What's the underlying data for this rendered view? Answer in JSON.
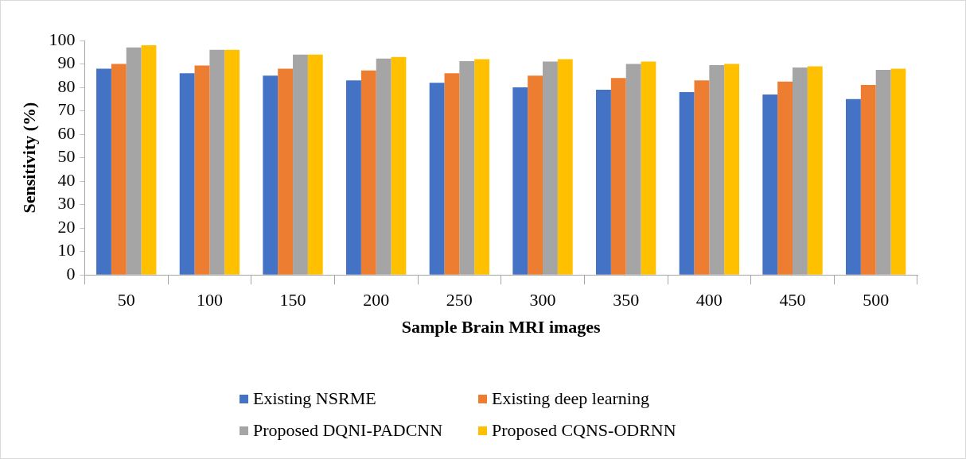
{
  "chart_data": {
    "type": "bar",
    "xlabel": "Sample Brain MRI images",
    "ylabel": "Sensitivity (%)",
    "categories": [
      "50",
      "100",
      "150",
      "200",
      "250",
      "300",
      "350",
      "400",
      "450",
      "500"
    ],
    "series": [
      {
        "name": "Existing NSRME",
        "color": "#4472c4",
        "values": [
          88,
          86,
          85,
          83,
          82,
          80,
          79,
          78,
          77,
          75
        ]
      },
      {
        "name": "Existing deep learning",
        "color": "#ed7d31",
        "values": [
          90,
          89.3,
          88,
          87.2,
          86,
          85,
          84,
          83,
          82.5,
          81
        ]
      },
      {
        "name": "Proposed DQNI-PADCNN",
        "color": "#a5a5a5",
        "values": [
          97,
          96,
          94,
          92.3,
          91.2,
          91,
          90,
          89.5,
          88.5,
          87.5
        ]
      },
      {
        "name": "Proposed CQNS-ODRNN",
        "color": "#ffc000",
        "values": [
          98,
          96,
          94,
          93,
          92,
          92,
          91,
          90,
          89,
          88
        ]
      }
    ],
    "ylim": [
      0,
      100
    ],
    "yticks": [
      0,
      10,
      20,
      30,
      40,
      50,
      60,
      70,
      80,
      90,
      100
    ],
    "grid": false,
    "legend": "bottom"
  }
}
